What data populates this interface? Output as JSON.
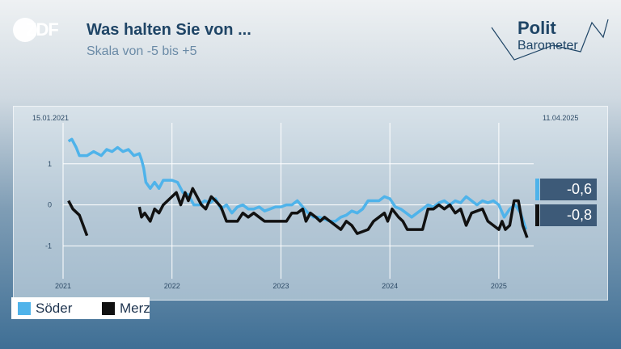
{
  "header": {
    "logo_text": "ZDF",
    "title": "Was halten Sie von ...",
    "subtitle": "Skala von -5 bis +5",
    "brand_line1": "Polit",
    "brand_line2": "Barometer"
  },
  "chart_data": {
    "type": "line",
    "date_start_label": "15.01.2021",
    "date_end_label": "11.04.2025",
    "ylim": [
      -1.8,
      2.0
    ],
    "y_ticks": [
      1,
      0,
      -1
    ],
    "x_ticks": [
      2021,
      2022,
      2023,
      2024,
      2025
    ],
    "series": [
      {
        "name": "Söder",
        "color": "#4fb3ea",
        "current_label": "-0,6",
        "points": [
          [
            2021.05,
            1.55
          ],
          [
            2021.08,
            1.6
          ],
          [
            2021.12,
            1.4
          ],
          [
            2021.15,
            1.2
          ],
          [
            2021.22,
            1.2
          ],
          [
            2021.28,
            1.3
          ],
          [
            2021.35,
            1.2
          ],
          [
            2021.4,
            1.35
          ],
          [
            2021.45,
            1.3
          ],
          [
            2021.5,
            1.4
          ],
          [
            2021.55,
            1.3
          ],
          [
            2021.6,
            1.35
          ],
          [
            2021.65,
            1.2
          ],
          [
            2021.7,
            1.25
          ],
          [
            2021.72,
            1.1
          ],
          [
            2021.74,
            0.9
          ],
          [
            2021.76,
            0.55
          ],
          [
            2021.8,
            0.4
          ],
          [
            2021.84,
            0.55
          ],
          [
            2021.88,
            0.4
          ],
          [
            2021.92,
            0.6
          ],
          [
            2021.96,
            0.6
          ],
          [
            2022.0,
            0.6
          ],
          [
            2022.05,
            0.55
          ],
          [
            2022.1,
            0.3
          ],
          [
            2022.15,
            0.25
          ],
          [
            2022.2,
            0.0
          ],
          [
            2022.25,
            0.0
          ],
          [
            2022.3,
            0.1
          ],
          [
            2022.35,
            0.05
          ],
          [
            2022.4,
            0.15
          ],
          [
            2022.45,
            -0.1
          ],
          [
            2022.5,
            0.0
          ],
          [
            2022.55,
            -0.2
          ],
          [
            2022.6,
            -0.05
          ],
          [
            2022.65,
            0.0
          ],
          [
            2022.7,
            -0.1
          ],
          [
            2022.75,
            -0.1
          ],
          [
            2022.8,
            -0.05
          ],
          [
            2022.85,
            -0.15
          ],
          [
            2022.9,
            -0.1
          ],
          [
            2022.95,
            -0.05
          ],
          [
            2023.0,
            -0.05
          ],
          [
            2023.05,
            0.0
          ],
          [
            2023.1,
            0.0
          ],
          [
            2023.15,
            0.1
          ],
          [
            2023.2,
            -0.05
          ],
          [
            2023.25,
            -0.2
          ],
          [
            2023.3,
            -0.3
          ],
          [
            2023.35,
            -0.3
          ],
          [
            2023.4,
            -0.35
          ],
          [
            2023.45,
            -0.4
          ],
          [
            2023.5,
            -0.4
          ],
          [
            2023.55,
            -0.3
          ],
          [
            2023.6,
            -0.25
          ],
          [
            2023.65,
            -0.15
          ],
          [
            2023.7,
            -0.2
          ],
          [
            2023.75,
            -0.1
          ],
          [
            2023.8,
            0.1
          ],
          [
            2023.85,
            0.1
          ],
          [
            2023.9,
            0.1
          ],
          [
            2023.95,
            0.2
          ],
          [
            2024.0,
            0.15
          ],
          [
            2024.05,
            -0.05
          ],
          [
            2024.1,
            -0.1
          ],
          [
            2024.15,
            -0.2
          ],
          [
            2024.2,
            -0.3
          ],
          [
            2024.25,
            -0.2
          ],
          [
            2024.3,
            -0.1
          ],
          [
            2024.35,
            0.0
          ],
          [
            2024.4,
            -0.05
          ],
          [
            2024.45,
            0.05
          ],
          [
            2024.5,
            0.1
          ],
          [
            2024.55,
            0.0
          ],
          [
            2024.6,
            0.1
          ],
          [
            2024.65,
            0.05
          ],
          [
            2024.7,
            0.2
          ],
          [
            2024.75,
            0.1
          ],
          [
            2024.8,
            0.0
          ],
          [
            2024.85,
            0.1
          ],
          [
            2024.9,
            0.05
          ],
          [
            2024.95,
            0.1
          ],
          [
            2025.0,
            0.0
          ],
          [
            2025.05,
            -0.3
          ],
          [
            2025.1,
            -0.1
          ],
          [
            2025.15,
            0.0
          ],
          [
            2025.2,
            -0.2
          ],
          [
            2025.25,
            -0.6
          ]
        ]
      },
      {
        "name": "Merz",
        "color": "#111111",
        "current_label": "-0,8",
        "points": [
          [
            2021.05,
            0.1
          ],
          [
            2021.09,
            -0.1
          ],
          [
            2021.15,
            -0.25
          ],
          [
            2021.22,
            -0.75
          ],
          null,
          [
            2021.7,
            -0.05
          ],
          [
            2021.72,
            -0.3
          ],
          [
            2021.75,
            -0.2
          ],
          [
            2021.8,
            -0.4
          ],
          [
            2021.84,
            -0.1
          ],
          [
            2021.88,
            -0.2
          ],
          [
            2021.92,
            0.0
          ],
          [
            2021.96,
            0.1
          ],
          [
            2022.0,
            0.2
          ],
          [
            2022.04,
            0.3
          ],
          [
            2022.08,
            0.0
          ],
          [
            2022.12,
            0.3
          ],
          [
            2022.15,
            0.1
          ],
          [
            2022.19,
            0.4
          ],
          [
            2022.23,
            0.2
          ],
          [
            2022.27,
            0.0
          ],
          [
            2022.31,
            -0.1
          ],
          [
            2022.36,
            0.2
          ],
          [
            2022.4,
            0.1
          ],
          [
            2022.45,
            -0.05
          ],
          [
            2022.5,
            -0.4
          ],
          [
            2022.55,
            -0.4
          ],
          [
            2022.6,
            -0.4
          ],
          [
            2022.65,
            -0.2
          ],
          [
            2022.7,
            -0.3
          ],
          [
            2022.75,
            -0.2
          ],
          [
            2022.8,
            -0.3
          ],
          [
            2022.85,
            -0.4
          ],
          [
            2022.9,
            -0.4
          ],
          [
            2022.95,
            -0.4
          ],
          [
            2023.0,
            -0.4
          ],
          [
            2023.05,
            -0.4
          ],
          [
            2023.1,
            -0.2
          ],
          [
            2023.15,
            -0.2
          ],
          [
            2023.2,
            -0.1
          ],
          [
            2023.23,
            -0.4
          ],
          [
            2023.27,
            -0.2
          ],
          [
            2023.32,
            -0.3
          ],
          [
            2023.36,
            -0.4
          ],
          [
            2023.4,
            -0.3
          ],
          [
            2023.45,
            -0.4
          ],
          [
            2023.5,
            -0.5
          ],
          [
            2023.55,
            -0.6
          ],
          [
            2023.6,
            -0.4
          ],
          [
            2023.65,
            -0.5
          ],
          [
            2023.7,
            -0.7
          ],
          [
            2023.75,
            -0.65
          ],
          [
            2023.8,
            -0.6
          ],
          [
            2023.85,
            -0.4
          ],
          [
            2023.9,
            -0.3
          ],
          [
            2023.95,
            -0.2
          ],
          [
            2023.98,
            -0.4
          ],
          [
            2024.02,
            -0.1
          ],
          [
            2024.08,
            -0.3
          ],
          [
            2024.12,
            -0.4
          ],
          [
            2024.16,
            -0.6
          ],
          [
            2024.2,
            -0.6
          ],
          [
            2024.25,
            -0.6
          ],
          [
            2024.3,
            -0.6
          ],
          [
            2024.35,
            -0.1
          ],
          [
            2024.4,
            -0.1
          ],
          [
            2024.45,
            0.0
          ],
          [
            2024.5,
            -0.1
          ],
          [
            2024.55,
            0.0
          ],
          [
            2024.6,
            -0.2
          ],
          [
            2024.65,
            -0.1
          ],
          [
            2024.7,
            -0.5
          ],
          [
            2024.75,
            -0.2
          ],
          [
            2024.8,
            -0.15
          ],
          [
            2024.85,
            -0.1
          ],
          [
            2024.9,
            -0.4
          ],
          [
            2024.95,
            -0.5
          ],
          [
            2025.0,
            -0.6
          ],
          [
            2025.03,
            -0.4
          ],
          [
            2025.06,
            -0.6
          ],
          [
            2025.1,
            -0.5
          ],
          [
            2025.14,
            0.1
          ],
          [
            2025.18,
            0.1
          ],
          [
            2025.22,
            -0.5
          ],
          [
            2025.26,
            -0.8
          ]
        ]
      }
    ],
    "grid": true,
    "legend_position": "bottom-left"
  }
}
